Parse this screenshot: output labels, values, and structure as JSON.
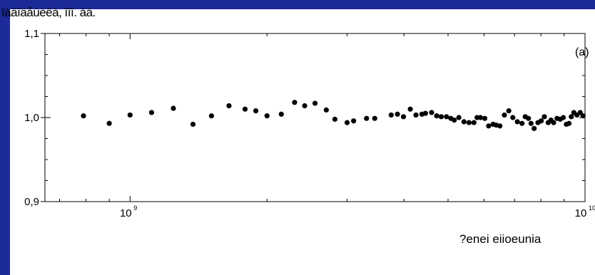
{
  "header": {
    "text": "ïàäîäåúèêà, îîî. àä."
  },
  "chart_data": {
    "type": "scatter",
    "title": "",
    "panel_label": "(a)",
    "xlabel": "?enei eiioeunia",
    "ylabel": "",
    "xscale": "log",
    "xlim": [
      650000000,
      10000000000
    ],
    "ylim": [
      0.9,
      1.1
    ],
    "x_ticks": [
      {
        "value": 1000000000,
        "base": "10",
        "exp": "9"
      },
      {
        "value": 10000000000,
        "base": "10",
        "exp": "10"
      }
    ],
    "y_ticks": [
      {
        "value": 0.9,
        "label": "0,9"
      },
      {
        "value": 1.0,
        "label": "1,0"
      },
      {
        "value": 1.1,
        "label": "1,1"
      }
    ],
    "grid": false,
    "marker_color": "#000000",
    "series": [
      {
        "points": [
          [
            790000000,
            1.002
          ],
          [
            900000000,
            0.993
          ],
          [
            1000000000,
            1.003
          ],
          [
            1115000000,
            1.006
          ],
          [
            1245000000,
            1.011
          ],
          [
            1375000000,
            0.992
          ],
          [
            1510000000,
            1.002
          ],
          [
            1650000000,
            1.014
          ],
          [
            1790000000,
            1.01
          ],
          [
            1890000000,
            1.008
          ],
          [
            2000000000,
            1.002
          ],
          [
            2150000000,
            1.004
          ],
          [
            2300000000,
            1.018
          ],
          [
            2420000000,
            1.014
          ],
          [
            2550000000,
            1.017
          ],
          [
            2700000000,
            1.009
          ],
          [
            2820000000,
            0.998
          ],
          [
            3000000000,
            0.994
          ],
          [
            3100000000,
            0.996
          ],
          [
            3310000000,
            0.999
          ],
          [
            3450000000,
            0.999
          ],
          [
            3750000000,
            1.003
          ],
          [
            3870000000,
            1.004
          ],
          [
            3990000000,
            1.001
          ],
          [
            4130000000,
            1.01
          ],
          [
            4250000000,
            1.003
          ],
          [
            4380000000,
            1.004
          ],
          [
            4460000000,
            1.005
          ],
          [
            4600000000,
            1.006
          ],
          [
            4720000000,
            1.002
          ],
          [
            4830000000,
            1.001
          ],
          [
            4960000000,
            1.001
          ],
          [
            5070000000,
            0.999
          ],
          [
            5160000000,
            0.997
          ],
          [
            5280000000,
            1.0
          ],
          [
            5420000000,
            0.995
          ],
          [
            5560000000,
            0.994
          ],
          [
            5700000000,
            0.994
          ],
          [
            5790000000,
            1.0
          ],
          [
            5890000000,
            1.0
          ],
          [
            6020000000,
            0.999
          ],
          [
            6140000000,
            0.99
          ],
          [
            6280000000,
            0.992
          ],
          [
            6380000000,
            0.991
          ],
          [
            6500000000,
            0.99
          ],
          [
            6650000000,
            1.003
          ],
          [
            6800000000,
            1.008
          ],
          [
            6940000000,
            1.0
          ],
          [
            7100000000,
            0.995
          ],
          [
            7270000000,
            0.993
          ],
          [
            7390000000,
            1.001
          ],
          [
            7510000000,
            0.999
          ],
          [
            7610000000,
            0.993
          ],
          [
            7730000000,
            0.987
          ],
          [
            7880000000,
            0.994
          ],
          [
            8010000000,
            0.996
          ],
          [
            8140000000,
            1.001
          ],
          [
            8300000000,
            0.994
          ],
          [
            8420000000,
            0.997
          ],
          [
            8530000000,
            0.994
          ],
          [
            8680000000,
            0.999
          ],
          [
            8820000000,
            0.998
          ],
          [
            8960000000,
            1.0
          ],
          [
            9100000000,
            0.992
          ],
          [
            9220000000,
            0.993
          ],
          [
            9330000000,
            1.001
          ],
          [
            9450000000,
            1.006
          ],
          [
            9600000000,
            1.003
          ],
          [
            9760000000,
            1.006
          ],
          [
            9900000000,
            1.002
          ]
        ]
      }
    ]
  }
}
